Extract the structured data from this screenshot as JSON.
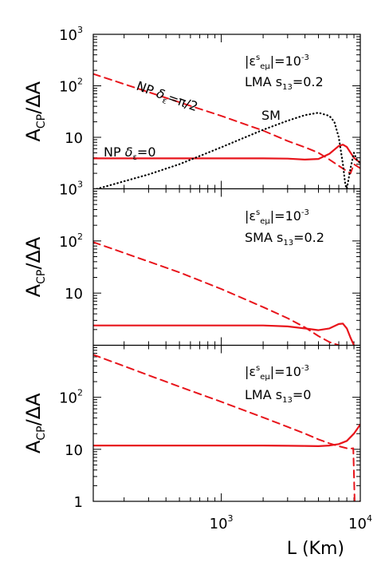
{
  "chart_data": {
    "type": "line",
    "xlabel": "L (Km)",
    "xscale": "log",
    "xlim": [
      120,
      10000
    ],
    "x_ticks": [
      {
        "value": 1000,
        "base": "10",
        "exp": "3"
      },
      {
        "value": 10000,
        "base": "10",
        "exp": "4"
      }
    ],
    "panels": [
      {
        "ylabel": {
          "main": "A",
          "sub": "CP",
          "rest": "/ΔA"
        },
        "yscale": "log",
        "ylim": [
          1,
          1000
        ],
        "y_ticks": [
          {
            "value": 1000,
            "base": "10",
            "exp": "3"
          },
          {
            "value": 100,
            "base": "10",
            "exp": "2"
          },
          {
            "value": 10,
            "base": "10",
            "exp": ""
          }
        ],
        "annotations": [
          "|ε^s_eμ|=10^-3",
          "LMA s_13=0.2"
        ],
        "series": [
          {
            "name": "NP δ_ε=π/2",
            "style": "dashed",
            "color": "#e8141b",
            "x": [
              120,
              500,
              1000,
              2000,
              3000,
              4000,
              5000,
              6000,
              7000,
              8000,
              8500,
              9000,
              10000
            ],
            "y": [
              170,
              48,
              26,
              13.5,
              8.5,
              6.4,
              5.0,
              3.7,
              2.8,
              2.2,
              2.0,
              3.0,
              2.5
            ]
          },
          {
            "name": "NP δ_ε=0",
            "style": "solid",
            "color": "#e8141b",
            "x": [
              120,
              500,
              1000,
              2000,
              3000,
              4000,
              5000,
              6000,
              7000,
              7500,
              8000,
              9000,
              10000
            ],
            "y": [
              3.9,
              3.9,
              3.9,
              3.9,
              3.85,
              3.7,
              3.8,
              4.8,
              6.8,
              7.2,
              6.5,
              4.0,
              3.2
            ]
          },
          {
            "name": "SM",
            "style": "dotted",
            "color": "#000000",
            "x": [
              120,
              300,
              500,
              1000,
              2000,
              3000,
              4000,
              5000,
              6000,
              6500,
              7000,
              7500,
              7800,
              8000,
              8500,
              9000,
              9500,
              10000
            ],
            "y": [
              0.95,
              1.9,
              3.0,
              6.4,
              14,
              21,
              27,
              30,
              26,
              20,
              10,
              3,
              1.2,
              1.0,
              2.5,
              5,
              3.5,
              3.2
            ]
          }
        ]
      },
      {
        "ylabel": {
          "main": "A",
          "sub": "CP",
          "rest": "/ΔA"
        },
        "yscale": "log",
        "ylim": [
          1,
          1000
        ],
        "y_ticks": [
          {
            "value": 1000,
            "base": "10",
            "exp": "3"
          },
          {
            "value": 100,
            "base": "10",
            "exp": "2"
          },
          {
            "value": 10,
            "base": "10",
            "exp": ""
          }
        ],
        "annotations": [
          "|ε^s_eμ|=10^-3",
          "SMA s_13=0.2"
        ],
        "series": [
          {
            "style": "dashed",
            "color": "#e8141b",
            "x": [
              120,
              500,
              1000,
              2000,
              3000,
              4000,
              5000,
              6000,
              7000
            ],
            "y": [
              95,
              25,
              12,
              5.4,
              3.3,
              2.2,
              1.5,
              1.15,
              1.0
            ]
          },
          {
            "style": "solid",
            "color": "#e8141b",
            "x": [
              120,
              500,
              1000,
              2000,
              3000,
              4000,
              5000,
              6000,
              7000,
              7500,
              8000,
              8500,
              9000
            ],
            "y": [
              2.4,
              2.4,
              2.4,
              2.4,
              2.3,
              2.1,
              1.95,
              2.1,
              2.55,
              2.6,
              2.1,
              1.4,
              1.0
            ]
          }
        ]
      },
      {
        "ylabel": {
          "main": "A",
          "sub": "CP",
          "rest": "/ΔA"
        },
        "yscale": "log",
        "ylim": [
          1,
          1000
        ],
        "y_ticks": [
          {
            "value": 100,
            "base": "10",
            "exp": "2"
          },
          {
            "value": 10,
            "base": "10",
            "exp": ""
          },
          {
            "value": 1,
            "base": "1",
            "exp": ""
          }
        ],
        "annotations": [
          "|ε^s_eμ|=10^-3",
          "LMA s_13=0"
        ],
        "series": [
          {
            "style": "dashed",
            "color": "#e8141b",
            "x": [
              120,
              500,
              1000,
              2000,
              3000,
              4000,
              5000,
              6000,
              7000,
              8000,
              8500,
              8900,
              9100,
              10000
            ],
            "y": [
              660,
              160,
              82,
              41,
              27,
              20,
              15.5,
              13,
              11.5,
              10.5,
              10.3,
              10.5,
              1.0,
              1.0
            ]
          },
          {
            "style": "solid",
            "color": "#e8141b",
            "x": [
              120,
              500,
              1000,
              2000,
              3000,
              4000,
              5000,
              6000,
              7000,
              8000,
              9000,
              10000
            ],
            "y": [
              11.8,
              11.8,
              11.8,
              11.8,
              11.7,
              11.6,
              11.5,
              11.8,
              12.6,
              14.5,
              20,
              30
            ]
          }
        ]
      }
    ]
  }
}
